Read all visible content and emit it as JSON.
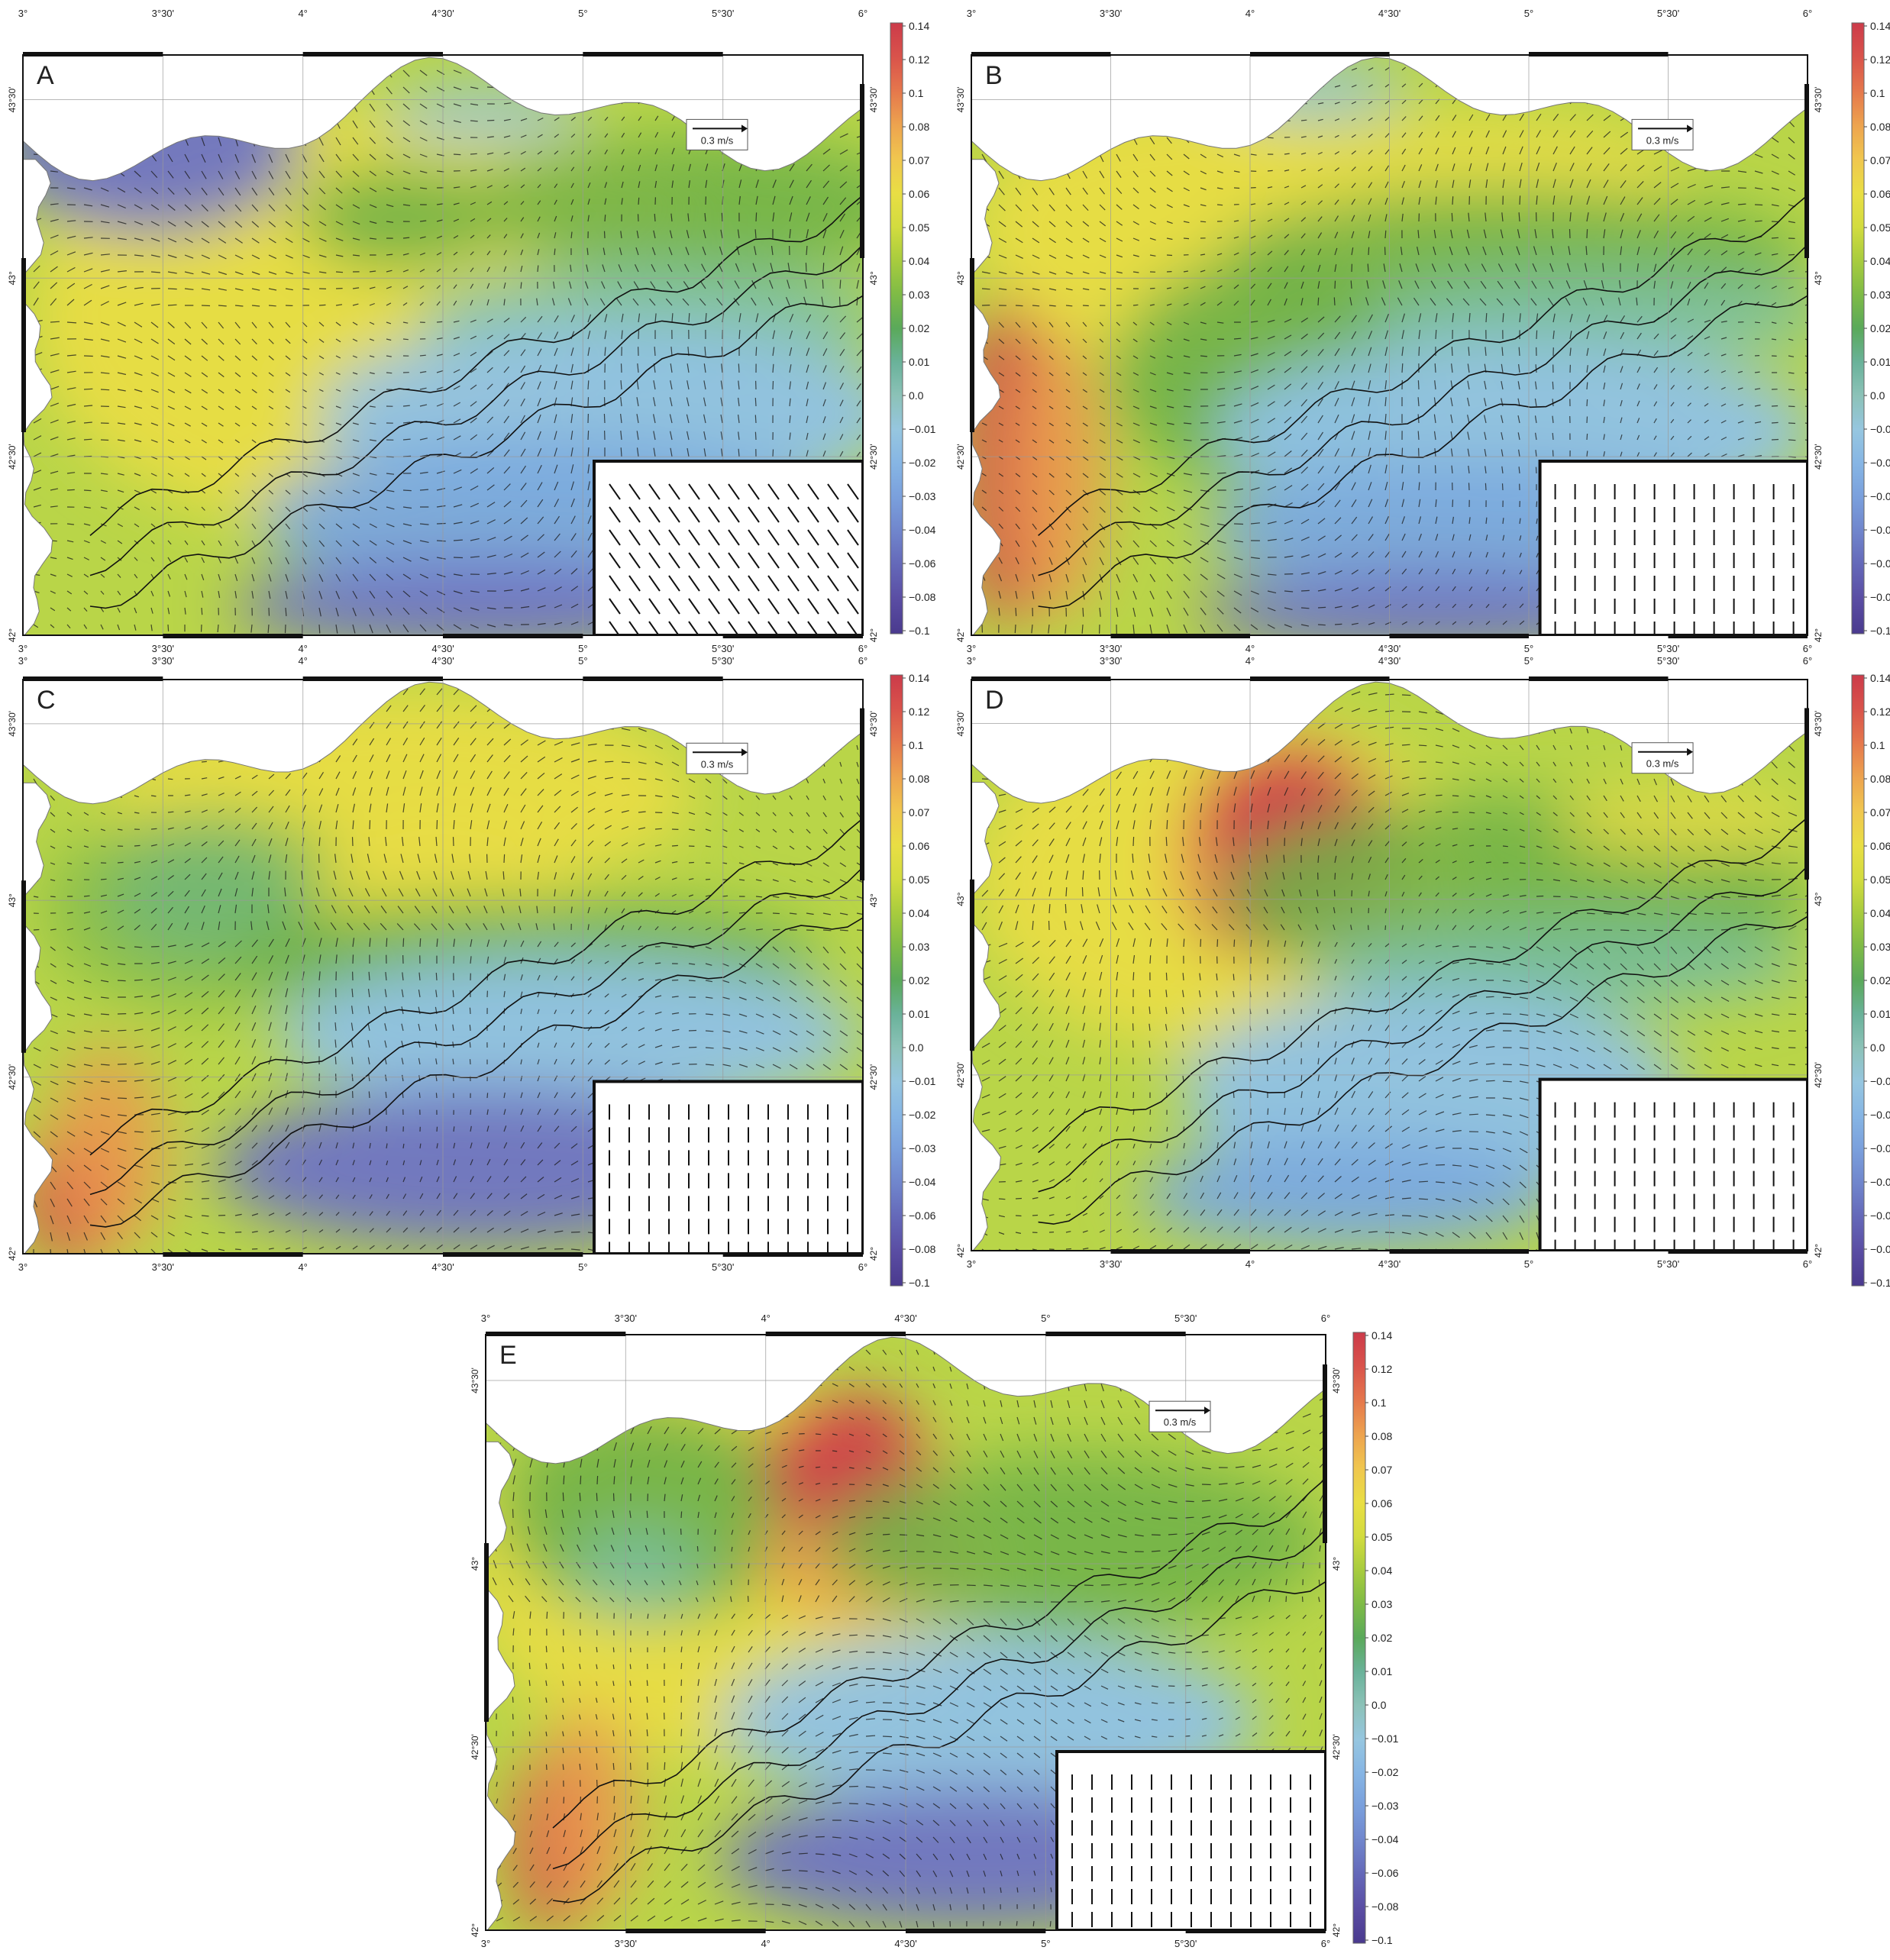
{
  "figure": {
    "lon_ticks": [
      "3°",
      "3°30'",
      "4°",
      "4°30'",
      "5°",
      "5°30'",
      "6°"
    ],
    "lat_ticks": [
      "42°",
      "42°30'",
      "43°",
      "43°30'"
    ],
    "lat_ticks_panel_b_right": [
      "42°",
      "42°30'",
      "43°",
      "43°30'"
    ],
    "scale_arrow_label_default": "0.3 m/s",
    "scale_arrow_label_ab": "0.3 m/s",
    "colorbar_labels": [
      "0.14",
      "0.12",
      "0.1",
      "0.08",
      "0.07",
      "0.06",
      "0.05",
      "0.04",
      "0.03",
      "0.02",
      "0.01",
      "0.0",
      "−0.01",
      "−0.02",
      "−0.03",
      "−0.04",
      "−0.06",
      "−0.08",
      "−0.1"
    ],
    "colorbar_colors": [
      "#cc3b4a",
      "#d9534b",
      "#e5774c",
      "#eda34f",
      "#f0c64f",
      "#e9de44",
      "#d3dc3f",
      "#a8cc3e",
      "#7fbb46",
      "#5aa95a",
      "#6ab29a",
      "#8cc2b8",
      "#96c6e0",
      "#86b5e4",
      "#7a9fdc",
      "#7085cc",
      "#6467b8",
      "#5a4da3",
      "#4a3a8e"
    ],
    "panels": [
      {
        "label": "A",
        "pattern": "a"
      },
      {
        "label": "B",
        "pattern": "b"
      },
      {
        "label": "C",
        "pattern": "c"
      },
      {
        "label": "D",
        "pattern": "d"
      },
      {
        "label": "E",
        "pattern": "e"
      }
    ]
  }
}
